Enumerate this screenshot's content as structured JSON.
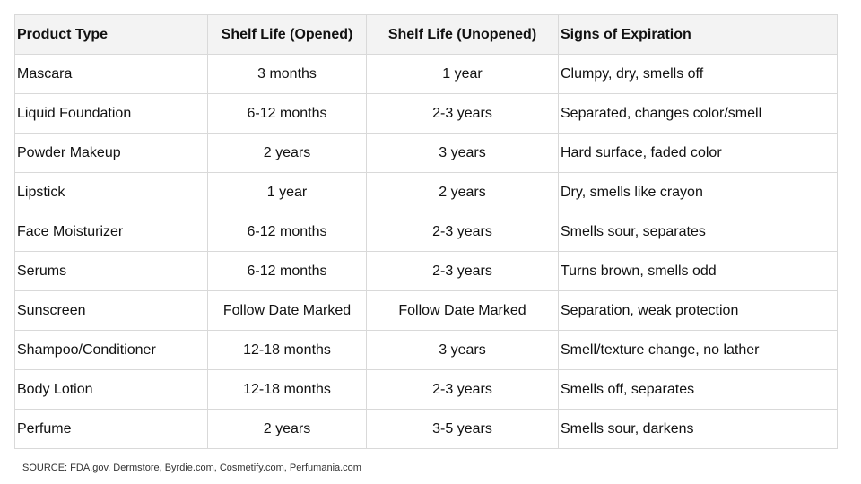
{
  "table": {
    "headers": [
      "Product Type",
      "Shelf Life (Opened)",
      "Shelf Life (Unopened)",
      "Signs of Expiration"
    ],
    "rows": [
      [
        "Mascara",
        "3 months",
        "1 year",
        "Clumpy, dry, smells off"
      ],
      [
        "Liquid Foundation",
        "6-12 months",
        "2-3 years",
        "Separated, changes color/smell"
      ],
      [
        "Powder Makeup",
        "2 years",
        "3 years",
        "Hard surface, faded color"
      ],
      [
        "Lipstick",
        "1 year",
        "2 years",
        "Dry, smells like crayon"
      ],
      [
        "Face Moisturizer",
        "6-12 months",
        "2-3 years",
        "Smells sour, separates"
      ],
      [
        "Serums",
        "6-12 months",
        "2-3 years",
        "Turns brown, smells odd"
      ],
      [
        "Sunscreen",
        "Follow Date Marked",
        "Follow Date Marked",
        "Separation, weak protection"
      ],
      [
        "Shampoo/Conditioner",
        "12-18 months",
        "3 years",
        "Smell/texture change, no lather"
      ],
      [
        "Body Lotion",
        "12-18 months",
        "2-3 years",
        "Smells off, separates"
      ],
      [
        "Perfume",
        "2 years",
        "3-5 years",
        "Smells sour, darkens"
      ]
    ]
  },
  "source": "SOURCE: FDA.gov, Dermstore, Byrdie.com, Cosmetify.com, Perfumania.com",
  "colors": {
    "header_bg": "#f3f3f3",
    "grid": "#d9d9d9",
    "outer_border": "#8c8c8c"
  }
}
